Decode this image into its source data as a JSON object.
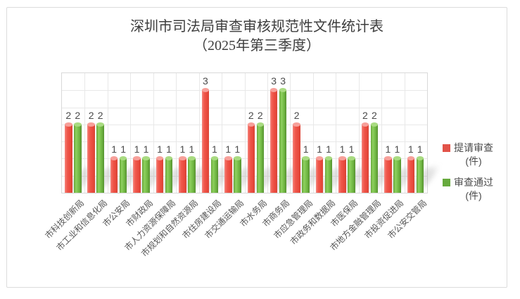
{
  "title": {
    "line1": "深圳市司法局审查审核规范性文件统计表",
    "line2": "（2025年第三季度）"
  },
  "legend": {
    "items": [
      {
        "name": "提请审查",
        "unit": "(件)",
        "color": "#e25349"
      },
      {
        "name": "审查通过",
        "unit": "(件)",
        "color": "#67aa3e"
      }
    ]
  },
  "colors": {
    "frame_border": "#dcdcdc",
    "plot_border": "#d9d9d9",
    "gridline": "#e8e8e8",
    "title_text": "#3e3e3e",
    "value_label_text": "#4b4b4b",
    "axis_label_text": "#565656"
  },
  "chart_data": {
    "type": "bar",
    "title": "深圳市司法局审查审核规范性文件统计表（2025年第三季度）",
    "categories": [
      "市科技创新局",
      "市工业和信息化局",
      "市公安局",
      "市财政局",
      "市人力资源保障局",
      "市规划和自然资源局",
      "市住房建设局",
      "市交通运输局",
      "市水务局",
      "市商务局",
      "市应急管理局",
      "市政务和数据局",
      "市医保局",
      "市地方金融管理局",
      "市投资促进局",
      "市公安交管局"
    ],
    "series": [
      {
        "name": "提请审查(件)",
        "color": "#e8534a",
        "gradient": [
          "#f5857e",
          "#f05a4e",
          "#ea4b3f",
          "#dc4437"
        ],
        "cap_color": "#f7a09a",
        "values": [
          2,
          2,
          1,
          1,
          1,
          1,
          3,
          1,
          2,
          3,
          2,
          1,
          1,
          2,
          1,
          1
        ]
      },
      {
        "name": "审查通过(件)",
        "color": "#6fae43",
        "gradient": [
          "#66a738",
          "#8ed05f",
          "#72b944",
          "#579331"
        ],
        "cap_color": "#a9db81",
        "values": [
          2,
          2,
          1,
          1,
          1,
          1,
          1,
          1,
          2,
          3,
          1,
          1,
          1,
          2,
          1,
          1
        ]
      }
    ],
    "xlabel": "",
    "ylabel": "",
    "ylim": [
      0,
      3.5
    ],
    "y_grid_step": 0.5,
    "grid": true,
    "value_labels": true,
    "legend_position": "right",
    "x_label_rotation": -45
  }
}
